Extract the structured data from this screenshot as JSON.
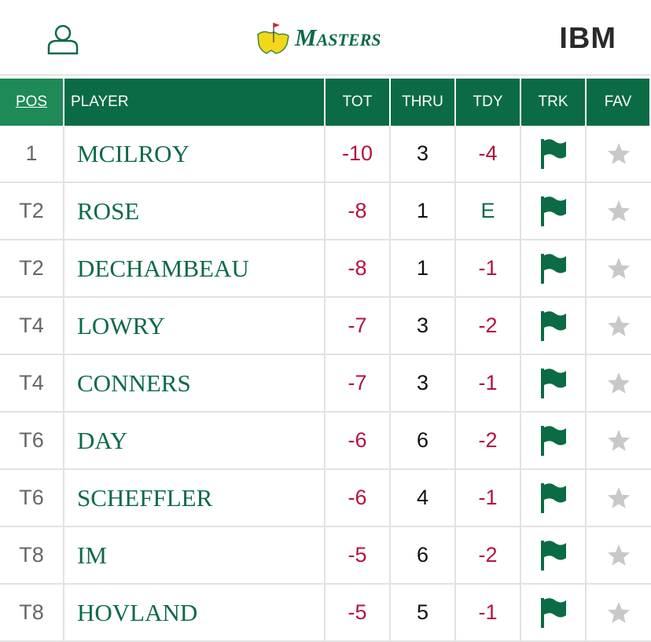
{
  "header": {
    "logo": "Masters",
    "sponsor": "IBM"
  },
  "table": {
    "columns": [
      "POS",
      "PLAYER",
      "TOT",
      "THRU",
      "TDY",
      "TRK",
      "FAV"
    ],
    "rows": [
      [
        "1",
        "MCILROY",
        "-10",
        "3",
        "-4"
      ],
      [
        "T2",
        "ROSE",
        "-8",
        "1",
        "E"
      ],
      [
        "T2",
        "DECHAMBEAU",
        "-8",
        "1",
        "-1"
      ],
      [
        "T4",
        "LOWRY",
        "-7",
        "3",
        "-2"
      ],
      [
        "T4",
        "CONNERS",
        "-7",
        "3",
        "-1"
      ],
      [
        "T6",
        "DAY",
        "-6",
        "6",
        "-2"
      ],
      [
        "T6",
        "SCHEFFLER",
        "-6",
        "4",
        "-1"
      ],
      [
        "T8",
        "IM",
        "-5",
        "6",
        "-2"
      ],
      [
        "T8",
        "HOVLAND",
        "-5",
        "5",
        "-1"
      ]
    ]
  }
}
